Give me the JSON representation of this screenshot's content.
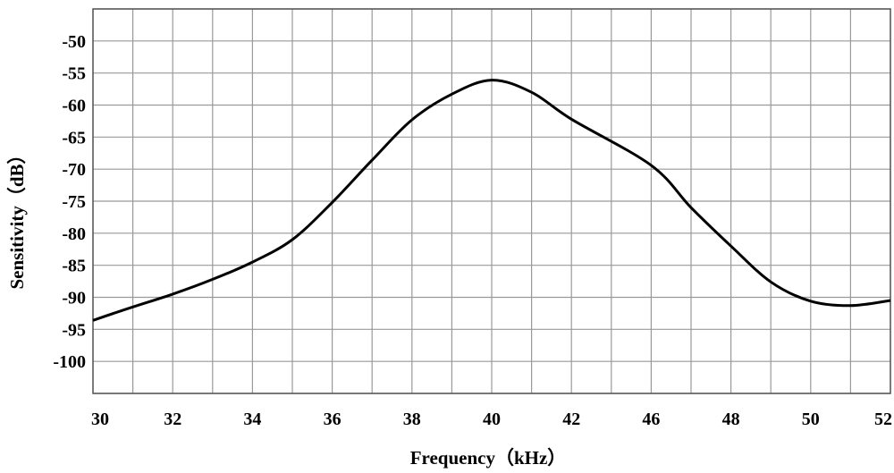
{
  "chart_data": {
    "type": "line",
    "title": "",
    "xlabel": "Frequency（kHz）",
    "ylabel": "Sensitivity（dB）",
    "x_tick_labels": [
      "30",
      "32",
      "34",
      "36",
      "38",
      "40",
      "42",
      "46",
      "48",
      "50",
      "52"
    ],
    "y_tick_labels": [
      "-50",
      "-55",
      "-60",
      "-65",
      "-70",
      "-75",
      "-80",
      "-85",
      "-90",
      "-95",
      "-100"
    ],
    "y_ticks": [
      -50,
      -55,
      -60,
      -65,
      -70,
      -75,
      -80,
      -85,
      -90,
      -95,
      -100
    ],
    "ylim": [
      -105,
      -45
    ],
    "grid": true,
    "legend": "none",
    "line_color": "#000000",
    "grid_color": "#999999",
    "series": [
      {
        "x": [
          "30",
          "31",
          "32",
          "33",
          "34",
          "35",
          "36",
          "37",
          "38",
          "39",
          "40",
          "41",
          "42",
          "46",
          "47",
          "48",
          "49",
          "50",
          "51",
          "52"
        ],
        "values": [
          -93.6,
          -91.5,
          -89.5,
          -87.2,
          -84.5,
          -81.0,
          -75.2,
          -68.6,
          -62.3,
          -58.3,
          -56.1,
          -58.0,
          -62.2,
          -69.4,
          -76.0,
          -82.0,
          -87.6,
          -90.6,
          -91.3,
          -90.5
        ]
      }
    ]
  }
}
